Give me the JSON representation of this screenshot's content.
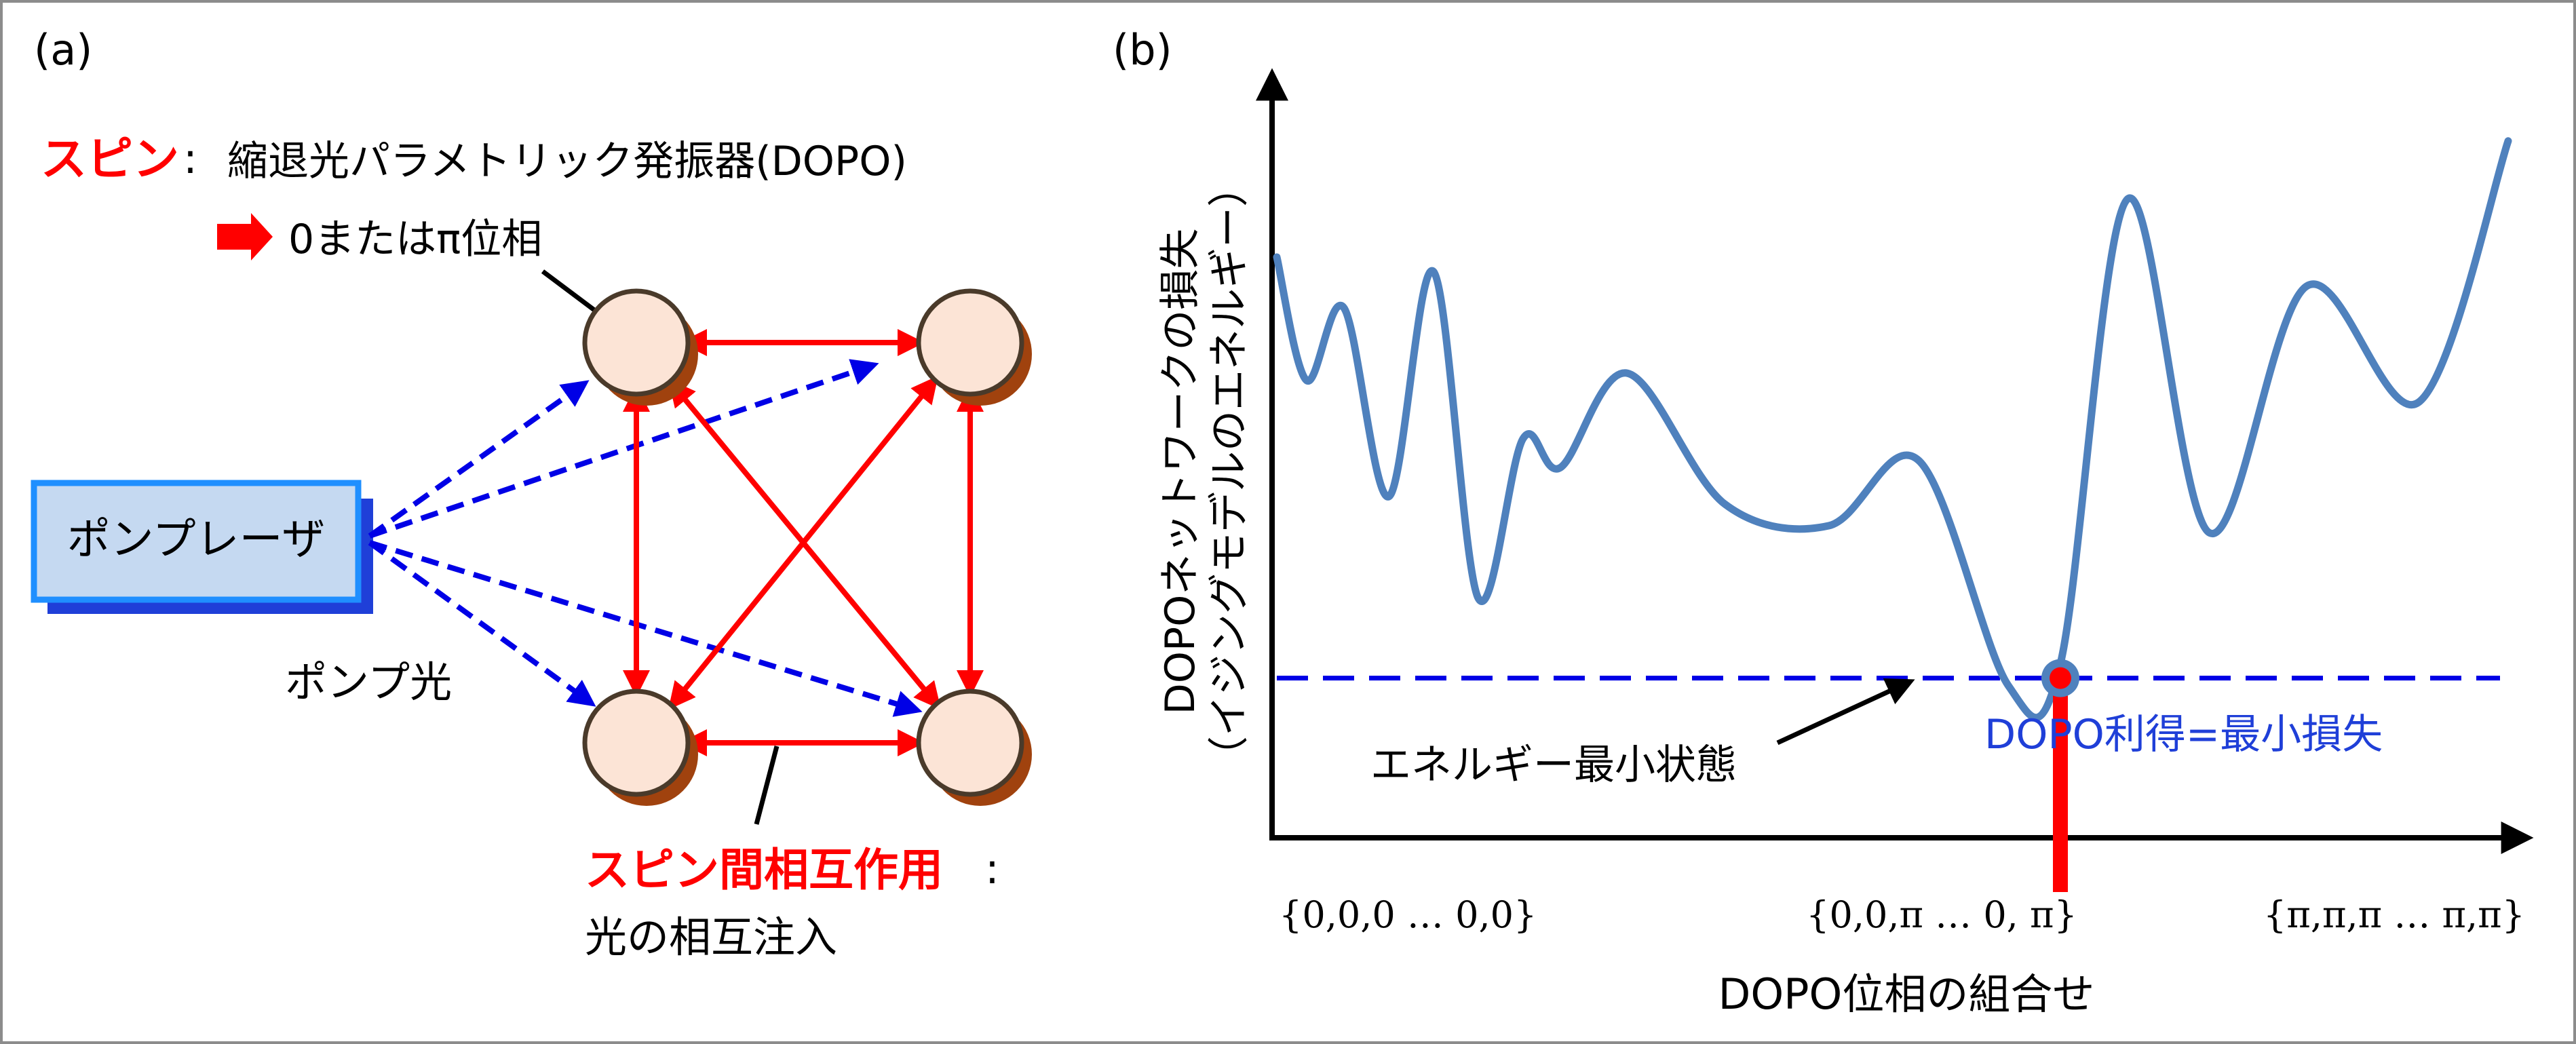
{
  "panel_a": {
    "label": "(a)",
    "spin_title": "スピン",
    "spin_colon": ":",
    "spin_desc": "縮退光パラメトリック発振器(DOPO)",
    "phase_text": "0またはπ位相",
    "pump_laser": "ポンプレーザ",
    "pump_light": "ポンプ光",
    "interaction_title": "スピン間相互作用",
    "interaction_colon": ":",
    "interaction_desc": "光の相互注入"
  },
  "panel_b": {
    "label": "(b)",
    "y_label_line1": "DOPOネットワークの損失",
    "y_label_line2": "（イジングモデルのエネルギー）",
    "x_label": "DOPO位相の組合せ",
    "x_ticks": [
      "{0,0,0 … 0,0}",
      "{0,0,π … 0, π}",
      "{π,π,π … π,π}"
    ],
    "min_state_label": "エネルギー最小状態",
    "gain_label": "DOPO利得=最小損失"
  },
  "colors": {
    "red": "#ff0000",
    "blue_dashed": "#0000e6",
    "curve": "#4f81bd",
    "node_fill": "#fce4d6",
    "node_shadow": "#a0420e",
    "laser_fill": "#c5d9f1",
    "laser_border": "#1f8fff",
    "gain_text": "#1f3fd8"
  },
  "chart_data": {
    "type": "line",
    "xlabel": "DOPO位相の組合せ",
    "ylabel": "DOPOネットワークの損失（イジングモデルのエネルギー）",
    "x_tick_labels": [
      "{0,0,0 … 0,0}",
      "{0,0,π … 0, π}",
      "{π,π,π … π,π}"
    ],
    "curve": [
      [
        0.0,
        0.8
      ],
      [
        0.02,
        0.63
      ],
      [
        0.045,
        0.73
      ],
      [
        0.075,
        0.47
      ],
      [
        0.105,
        0.78
      ],
      [
        0.135,
        0.33
      ],
      [
        0.165,
        0.55
      ],
      [
        0.19,
        0.51
      ],
      [
        0.235,
        0.64
      ],
      [
        0.3,
        0.46
      ],
      [
        0.37,
        0.43
      ],
      [
        0.43,
        0.52
      ],
      [
        0.49,
        0.21
      ],
      [
        0.525,
        0.24
      ],
      [
        0.57,
        0.88
      ],
      [
        0.625,
        0.42
      ],
      [
        0.69,
        0.76
      ],
      [
        0.765,
        0.6
      ],
      [
        0.825,
        0.96
      ]
    ],
    "min_point": [
      0.525,
      0.22
    ],
    "gain_level": 0.22,
    "grid": false,
    "legend": "none"
  }
}
